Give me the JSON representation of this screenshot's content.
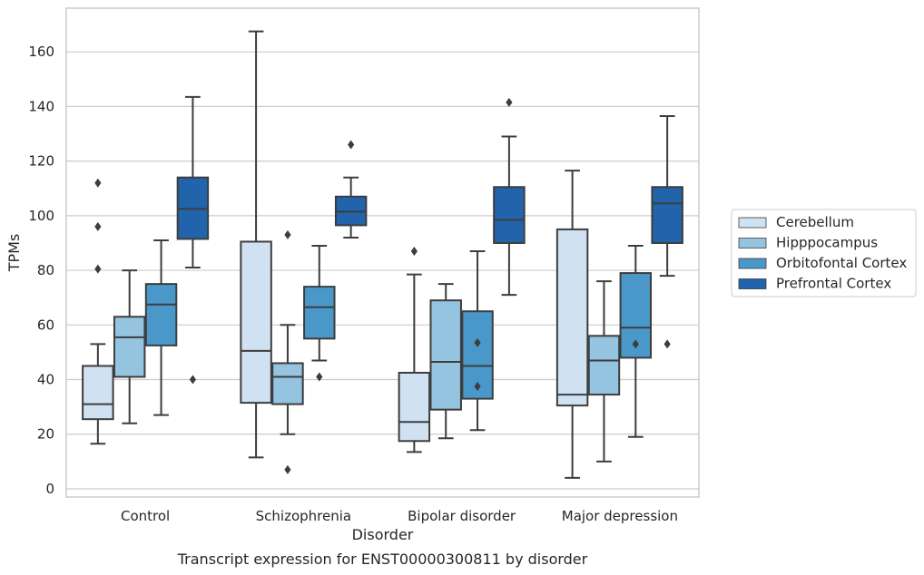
{
  "chart_data": {
    "type": "box",
    "caption": "Transcript expression for ENST00000300811 by disorder",
    "xlabel": "Disorder",
    "ylabel": "TPMs",
    "ylim": [
      -3,
      176
    ],
    "yticks": [
      0,
      20,
      40,
      60,
      80,
      100,
      120,
      140,
      160
    ],
    "grid": "horizontal",
    "legend_position": "right",
    "categories": [
      "Control",
      "Schizophrenia",
      "Bipolar disorder",
      "Major depression"
    ],
    "series": [
      {
        "name": "Cerebellum",
        "color": "#d0e1f2",
        "boxes": [
          {
            "whislo": 16.5,
            "q1": 25.5,
            "med": 31,
            "q3": 45,
            "whishi": 53,
            "fliers": [
              80.5,
              96,
              112
            ]
          },
          {
            "whislo": 11.5,
            "q1": 31.5,
            "med": 50.5,
            "q3": 90.5,
            "whishi": 167.5,
            "fliers": []
          },
          {
            "whislo": 13.5,
            "q1": 17.5,
            "med": 24.5,
            "q3": 42.5,
            "whishi": 78.5,
            "fliers": [
              87
            ]
          },
          {
            "whislo": 4,
            "q1": 30.5,
            "med": 34.5,
            "q3": 95,
            "whishi": 116.5,
            "fliers": []
          }
        ]
      },
      {
        "name": "Hipppocampus",
        "color": "#94c4df",
        "boxes": [
          {
            "whislo": 24,
            "q1": 41,
            "med": 55.5,
            "q3": 63,
            "whishi": 80,
            "fliers": []
          },
          {
            "whislo": 20,
            "q1": 31,
            "med": 41,
            "q3": 46,
            "whishi": 60,
            "fliers": [
              7,
              93
            ]
          },
          {
            "whislo": 18.5,
            "q1": 29,
            "med": 46.5,
            "q3": 69,
            "whishi": 75,
            "fliers": []
          },
          {
            "whislo": 10,
            "q1": 34.5,
            "med": 47,
            "q3": 56,
            "whishi": 76,
            "fliers": []
          }
        ]
      },
      {
        "name": "Orbitofontal Cortex",
        "color": "#4a98c9",
        "boxes": [
          {
            "whislo": 27,
            "q1": 52.5,
            "med": 67.5,
            "q3": 75,
            "whishi": 91,
            "fliers": []
          },
          {
            "whislo": 47,
            "q1": 55,
            "med": 66.5,
            "q3": 74,
            "whishi": 89,
            "fliers": [
              41
            ]
          },
          {
            "whislo": 21.5,
            "q1": 33,
            "med": 45,
            "q3": 65,
            "whishi": 87,
            "fliers": [
              37.5,
              53.5
            ]
          },
          {
            "whislo": 19,
            "q1": 48,
            "med": 59,
            "q3": 79,
            "whishi": 89,
            "fliers": [
              53
            ]
          }
        ]
      },
      {
        "name": "Prefrontal Cortex",
        "color": "#2164ab",
        "boxes": [
          {
            "whislo": 81,
            "q1": 91.5,
            "med": 102.5,
            "q3": 114,
            "whishi": 143.5,
            "fliers": [
              40
            ]
          },
          {
            "whislo": 92,
            "q1": 96.5,
            "med": 101.5,
            "q3": 107,
            "whishi": 114,
            "fliers": [
              126
            ]
          },
          {
            "whislo": 71,
            "q1": 90,
            "med": 98.5,
            "q3": 110.5,
            "whishi": 129,
            "fliers": [
              141.5
            ]
          },
          {
            "whislo": 78,
            "q1": 90,
            "med": 104.5,
            "q3": 110.5,
            "whishi": 136.5,
            "fliers": [
              53
            ]
          }
        ]
      }
    ],
    "colors": {
      "grid": "#cccccc",
      "frame": "#cccccc",
      "line": "#3d3d3d",
      "flier": "#3d3d3d"
    }
  }
}
